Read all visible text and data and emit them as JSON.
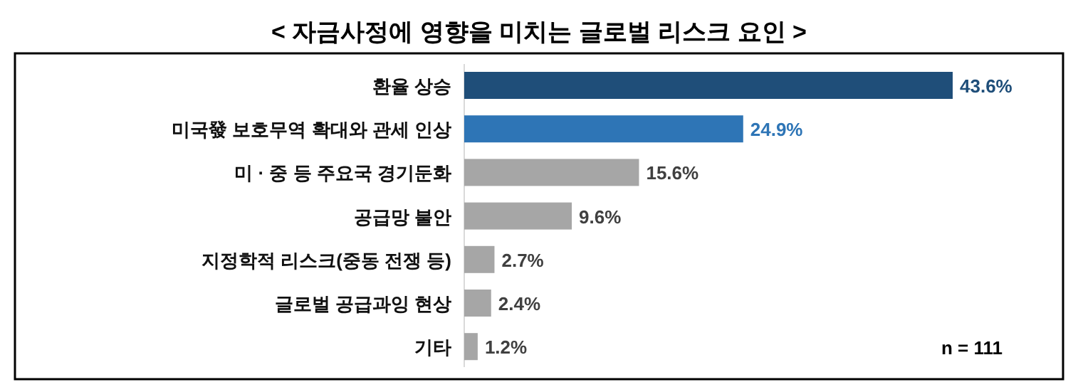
{
  "chart_data": {
    "type": "bar",
    "orientation": "horizontal",
    "title": "< 자금사정에 영향을 미치는 글로벌 리스크 요인 >",
    "categories": [
      "환율 상승",
      "미국發 보호무역 확대와 관세 인상",
      "미 · 중 등 주요국 경기둔화",
      "공급망 불안",
      "지정학적 리스크(중동 전쟁 등)",
      "글로벌 공급과잉 현상",
      "기타"
    ],
    "values": [
      43.6,
      24.9,
      15.6,
      9.6,
      2.7,
      2.4,
      1.2
    ],
    "colors": [
      "#1f4e79",
      "#2e75b6",
      "#a6a6a6",
      "#a6a6a6",
      "#a6a6a6",
      "#a6a6a6",
      "#a6a6a6"
    ],
    "value_labels": [
      "43.6%",
      "24.9%",
      "15.6%",
      "9.6%",
      "2.7%",
      "2.4%",
      "1.2%"
    ],
    "annotations": [
      "n = 111"
    ]
  }
}
